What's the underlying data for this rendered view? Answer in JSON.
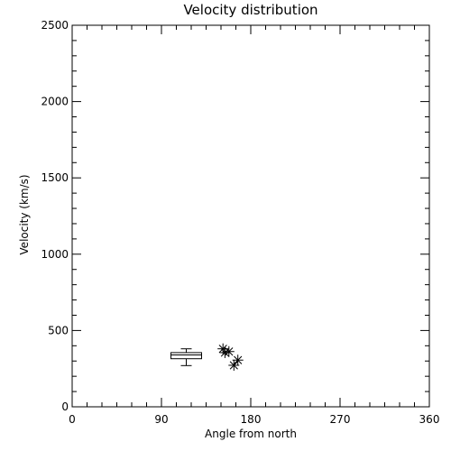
{
  "chart_data": {
    "type": "scatter",
    "title": "Velocity distribution",
    "xlabel": "Angle from north",
    "ylabel": "Velocity (km/s)",
    "xlim": [
      0,
      360
    ],
    "ylim": [
      0,
      2500
    ],
    "x_ticks": [
      "0",
      "90",
      "180",
      "270",
      "360"
    ],
    "y_ticks": [
      "0",
      "500",
      "1000",
      "1500",
      "2000",
      "2500"
    ],
    "grid": false,
    "boxplot": {
      "x": 115,
      "q1": 315,
      "median": 340,
      "q3": 355,
      "whisker_low": 270,
      "whisker_high": 380
    },
    "points": [
      {
        "x": 152,
        "y": 380
      },
      {
        "x": 154,
        "y": 355
      },
      {
        "x": 158,
        "y": 362
      },
      {
        "x": 163,
        "y": 272
      },
      {
        "x": 167,
        "y": 306
      }
    ],
    "marker": "asterisk",
    "colors": {
      "axis": "#000000",
      "background": "#ffffff"
    }
  }
}
